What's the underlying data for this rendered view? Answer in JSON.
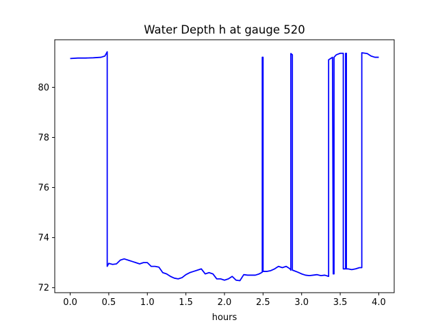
{
  "chart_data": {
    "type": "line",
    "title": "Water Depth h at gauge 520",
    "xlabel": "hours",
    "ylabel": "",
    "xlim": [
      -0.2,
      4.2
    ],
    "ylim": [
      71.8,
      81.9
    ],
    "xticks": [
      "0.0",
      "0.5",
      "1.0",
      "1.5",
      "2.0",
      "2.5",
      "3.0",
      "3.5",
      "4.0"
    ],
    "yticks": [
      "72",
      "74",
      "76",
      "78",
      "80"
    ],
    "grid": false,
    "line_color": "#0000ff",
    "series": [
      {
        "x": [
          0.0,
          0.1,
          0.2,
          0.3,
          0.4,
          0.45,
          0.48,
          0.48,
          0.5,
          0.55,
          0.6,
          0.65,
          0.7,
          0.75,
          0.8,
          0.85,
          0.9,
          0.95,
          1.0,
          1.05,
          1.1,
          1.15,
          1.2,
          1.25,
          1.3,
          1.35,
          1.4,
          1.45,
          1.5,
          1.55,
          1.6,
          1.65,
          1.7,
          1.75,
          1.8,
          1.85,
          1.9,
          1.95,
          2.0,
          2.05,
          2.1,
          2.15,
          2.2,
          2.25,
          2.3,
          2.35,
          2.4,
          2.45,
          2.48,
          2.49,
          2.49,
          2.5,
          2.5,
          2.55,
          2.6,
          2.65,
          2.7,
          2.75,
          2.8,
          2.85,
          2.86,
          2.86,
          2.88,
          2.88,
          2.9,
          2.95,
          3.0,
          3.05,
          3.1,
          3.15,
          3.2,
          3.25,
          3.3,
          3.35,
          3.35,
          3.4,
          3.41,
          3.42,
          3.42,
          3.45,
          3.5,
          3.54,
          3.54,
          3.57,
          3.57,
          3.58,
          3.58,
          3.6,
          3.65,
          3.7,
          3.75,
          3.78,
          3.78,
          3.85,
          3.9,
          3.95,
          4.0
        ],
        "y": [
          81.15,
          81.17,
          81.17,
          81.18,
          81.2,
          81.25,
          81.42,
          72.85,
          72.97,
          72.93,
          72.95,
          73.1,
          73.15,
          73.1,
          73.05,
          73.0,
          72.95,
          73.0,
          73.0,
          72.85,
          72.85,
          72.82,
          72.6,
          72.55,
          72.45,
          72.38,
          72.35,
          72.4,
          72.52,
          72.6,
          72.65,
          72.7,
          72.75,
          72.55,
          72.6,
          72.55,
          72.35,
          72.35,
          72.3,
          72.35,
          72.45,
          72.3,
          72.28,
          72.52,
          72.5,
          72.5,
          72.5,
          72.55,
          72.6,
          72.62,
          81.2,
          81.2,
          72.65,
          72.65,
          72.68,
          72.75,
          72.85,
          72.8,
          72.85,
          72.75,
          72.7,
          81.35,
          81.3,
          72.7,
          72.68,
          72.62,
          72.55,
          72.5,
          72.48,
          72.5,
          72.52,
          72.48,
          72.5,
          72.45,
          81.1,
          81.2,
          72.55,
          72.55,
          81.2,
          81.3,
          81.36,
          81.36,
          72.75,
          72.75,
          81.36,
          81.36,
          72.75,
          72.75,
          72.72,
          72.75,
          72.8,
          72.8,
          81.38,
          81.35,
          81.25,
          81.2,
          81.2
        ]
      }
    ]
  }
}
